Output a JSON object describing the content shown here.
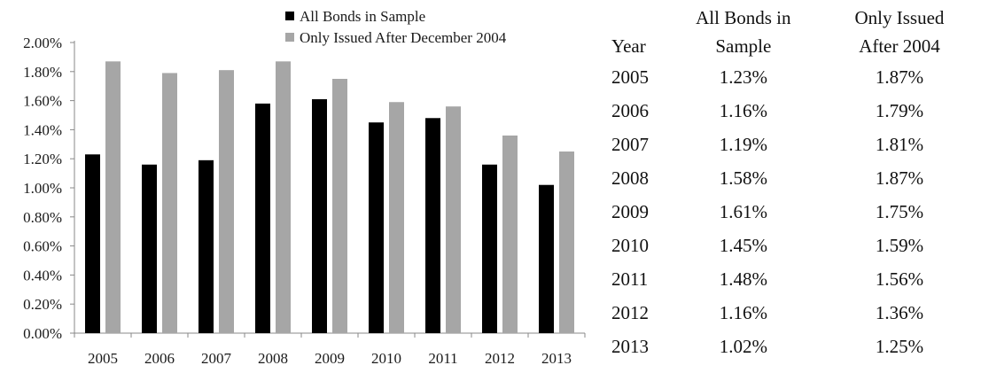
{
  "chart_data": {
    "type": "bar",
    "categories": [
      "2005",
      "2006",
      "2007",
      "2008",
      "2009",
      "2010",
      "2011",
      "2012",
      "2013"
    ],
    "series": [
      {
        "name": "All Bonds in Sample",
        "values": [
          1.23,
          1.16,
          1.19,
          1.58,
          1.61,
          1.45,
          1.48,
          1.16,
          1.02
        ],
        "color": "#000000"
      },
      {
        "name": "Only Issued After December 2004",
        "values": [
          1.87,
          1.79,
          1.81,
          1.87,
          1.75,
          1.59,
          1.56,
          1.36,
          1.25
        ],
        "color": "#a6a6a6"
      }
    ],
    "ylim": [
      0,
      2.0
    ],
    "yticks": [
      "0.00%",
      "0.20%",
      "0.40%",
      "0.60%",
      "0.80%",
      "1.00%",
      "1.20%",
      "1.40%",
      "1.60%",
      "1.80%",
      "2.00%"
    ],
    "ytick_values": [
      0,
      0.2,
      0.4,
      0.6,
      0.8,
      1.0,
      1.2,
      1.4,
      1.6,
      1.8,
      2.0
    ],
    "legend_position": "top-right",
    "grid": false
  },
  "table": {
    "headers": {
      "year": "Year",
      "col_a_line1": "All Bonds in",
      "col_a_line2": "Sample",
      "col_b_line1": "Only Issued",
      "col_b_line2": "After 2004"
    },
    "rows": [
      {
        "year": "2005",
        "all": "1.23%",
        "after": "1.87%"
      },
      {
        "year": "2006",
        "all": "1.16%",
        "after": "1.79%"
      },
      {
        "year": "2007",
        "all": "1.19%",
        "after": "1.81%"
      },
      {
        "year": "2008",
        "all": "1.58%",
        "after": "1.87%"
      },
      {
        "year": "2009",
        "all": "1.61%",
        "after": "1.75%"
      },
      {
        "year": "2010",
        "all": "1.45%",
        "after": "1.59%"
      },
      {
        "year": "2011",
        "all": "1.48%",
        "after": "1.56%"
      },
      {
        "year": "2012",
        "all": "1.16%",
        "after": "1.36%"
      },
      {
        "year": "2013",
        "all": "1.02%",
        "after": "1.25%"
      }
    ]
  }
}
